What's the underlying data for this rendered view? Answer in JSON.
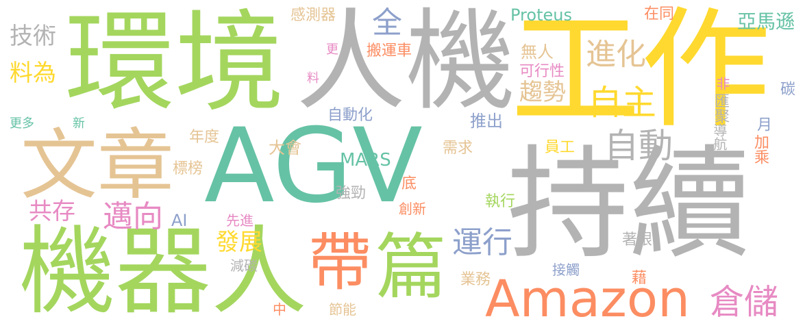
{
  "palette": {
    "green": "#a4d65e",
    "gray": "#b3b3b3",
    "tan": "#e5c494",
    "teal": "#66c2a5",
    "yellow": "#ffd92f",
    "orange": "#fc8d62",
    "pink": "#e78ac3",
    "blue": "#8da0cb"
  },
  "words": {
    "agv": "AGV",
    "chixu": "持續",
    "gongzuo": "工作",
    "jiqiren": "機器人",
    "huanjing": "環境",
    "renji": "人機",
    "wenzhang": "文章",
    "amazon": "Amazon",
    "dai": "帶",
    "pian": "篇",
    "zidong": "自動",
    "zizhu": "自主",
    "jinhua": "進化",
    "cangchu": "倉儲",
    "yunxing": "運行",
    "quan": "全",
    "maixiang": "邁向",
    "jishu": "技術",
    "liaowei": "料為",
    "gongcun": "共存",
    "fazhan": "發展",
    "qushi": "趨勢",
    "mars": "MARS",
    "proteus": "Proteus",
    "yamaxun": "亞馬遜",
    "zaitong": "在同",
    "ganceqi": "感測器",
    "banyunche": "搬運車",
    "wuren": "無人",
    "kexingxing": "可行性",
    "zidonghua": "自動化",
    "tuichu": "推出",
    "niandu": "年度",
    "dahui": "大會",
    "biaobang": "標榜",
    "xuqiu": "需求",
    "yuangong": "員工",
    "qiangjin": "強勁",
    "di": "底",
    "zhixing": "執行",
    "chuangxin": "創新",
    "xianjin": "先進",
    "ai": "AI",
    "jiantan": "減碳",
    "jieneng": "節能",
    "yewu": "業務",
    "jiechu": "接觸",
    "zhuoyan": "著眼",
    "jie": "藉",
    "zhong": "中",
    "fei": "非",
    "huiju": "匯聚",
    "daohang": "導航",
    "yue": "月",
    "jiacheng": "加乘",
    "tan": "碳",
    "geng": "更",
    "liao": "料",
    "gengduo": "更多",
    "xin": "新"
  }
}
